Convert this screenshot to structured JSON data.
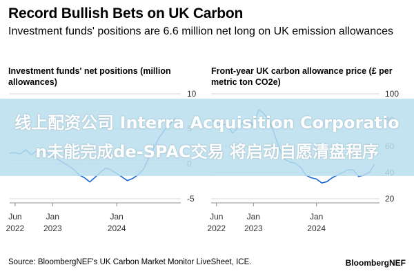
{
  "header": {
    "title": "Record Bullish Bets on UK Carbon",
    "subtitle": "Investment funds' positions are 6.6 million net long on UK emission allowances"
  },
  "panels": {
    "left_title": "Investment funds' net positions (million allowances)",
    "right_title": "Front-year UK carbon allowance price (£ per metric ton CO2e)"
  },
  "overlay": {
    "text": "线上配资公司 Interra Acquisition Corporation未能完成de-SPAC交易 将启动自愿清盘程序"
  },
  "footer": {
    "source": "Source: BloombergNEF's UK Carbon Market Monitor LiveSheet, ICE.",
    "brand": "BloombergNEF"
  },
  "colors": {
    "line": "#1566d6",
    "grid": "#d9d9d9",
    "axis": "#8c8c8c",
    "overlay": "#b9deee"
  },
  "chart_data": [
    {
      "type": "line",
      "title": "Investment funds' net positions (million allowances)",
      "xlabel": "",
      "ylabel": "",
      "xlim": [
        "2022-05-01",
        "2024-12-31"
      ],
      "ylim": [
        -5,
        10
      ],
      "yticks": [
        -5,
        0,
        5,
        10
      ],
      "ytick_labels": [
        "-5",
        "0",
        "5",
        "10"
      ],
      "xticks": [
        {
          "date": "2022-06-01",
          "month": "Jun",
          "year": "2022"
        },
        {
          "date": "2023-01-01",
          "month": "Jan",
          "year": "2023"
        },
        {
          "date": "2024-01-01",
          "month": "Jan",
          "year": "2024"
        }
      ],
      "y_axis_position": "right",
      "grid": true,
      "series": [
        {
          "x": [
            "2022-05-01",
            "2022-06-01",
            "2022-07-01",
            "2022-08-01",
            "2022-09-01",
            "2022-10-01",
            "2022-11-01",
            "2022-12-01",
            "2023-01-01",
            "2023-02-01",
            "2023-03-01",
            "2023-04-01",
            "2023-05-01",
            "2023-06-01",
            "2023-07-01",
            "2023-08-01",
            "2023-09-01",
            "2023-10-01",
            "2023-11-01",
            "2023-12-01",
            "2024-01-01",
            "2024-02-01",
            "2024-03-01",
            "2024-04-01",
            "2024-05-01",
            "2024-06-01",
            "2024-07-01",
            "2024-08-01",
            "2024-09-01",
            "2024-10-01",
            "2024-11-01",
            "2024-12-01"
          ],
          "y": [
            1.5,
            1.6,
            1.4,
            2.0,
            1.3,
            1.8,
            2.2,
            1.5,
            1.0,
            0.6,
            0.2,
            -0.3,
            -0.8,
            -1.6,
            -2.0,
            -2.6,
            -1.9,
            -1.2,
            -0.6,
            -0.9,
            -1.4,
            -1.9,
            -2.4,
            -2.1,
            -1.6,
            -0.8,
            0.8,
            2.4,
            3.8,
            4.9,
            5.7,
            6.6
          ]
        }
      ]
    },
    {
      "type": "line",
      "title": "Front-year UK carbon allowance price (£ per metric ton CO2e)",
      "xlabel": "",
      "ylabel": "",
      "xlim": [
        "2022-05-01",
        "2024-12-31"
      ],
      "ylim": [
        20,
        100
      ],
      "yticks": [
        20,
        40,
        60,
        80,
        100
      ],
      "ytick_labels": [
        "20",
        "40",
        "60",
        "80",
        "100"
      ],
      "xticks": [
        {
          "date": "2022-06-01",
          "month": "Jun",
          "year": "2022"
        },
        {
          "date": "2023-01-01",
          "month": "Jan",
          "year": "2023"
        },
        {
          "date": "2024-01-01",
          "month": "Jan",
          "year": "2024"
        }
      ],
      "y_axis_position": "right",
      "grid": true,
      "series": [
        {
          "x": [
            "2022-05-01",
            "2022-06-01",
            "2022-07-01",
            "2022-08-01",
            "2022-09-01",
            "2022-10-01",
            "2022-11-01",
            "2022-12-01",
            "2023-01-01",
            "2023-02-01",
            "2023-03-01",
            "2023-04-01",
            "2023-05-01",
            "2023-06-01",
            "2023-07-01",
            "2023-08-01",
            "2023-09-01",
            "2023-10-01",
            "2023-11-01",
            "2023-12-01",
            "2024-01-01",
            "2024-02-01",
            "2024-03-01",
            "2024-04-01",
            "2024-05-01",
            "2024-06-01",
            "2024-07-01",
            "2024-08-01",
            "2024-09-01",
            "2024-10-01",
            "2024-11-01",
            "2024-12-01"
          ],
          "y": [
            80,
            78,
            76,
            77,
            70,
            74,
            78,
            80,
            76,
            88,
            85,
            80,
            70,
            58,
            50,
            48,
            47,
            44,
            38,
            36,
            35,
            32,
            33,
            36,
            38,
            40,
            42,
            42,
            37,
            38,
            40,
            46
          ]
        }
      ]
    }
  ]
}
